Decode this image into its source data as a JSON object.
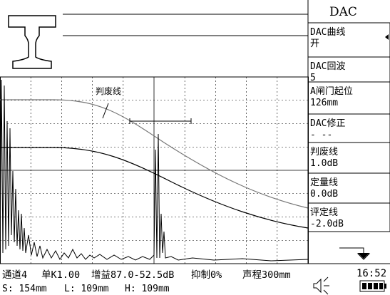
{
  "menu": {
    "title": "DAC",
    "items": [
      {
        "label": "DAC曲线",
        "value": "开"
      },
      {
        "label": "DAC回波",
        "value": "5"
      },
      {
        "label": "A闸门起位",
        "value": "126mm"
      },
      {
        "label": "DAC修正",
        "value": "- --"
      },
      {
        "label": "判废线",
        "value": "1.0dB"
      },
      {
        "label": "定量线",
        "value": "0.0dB"
      },
      {
        "label": "评定线",
        "value": "-2.0dB"
      }
    ]
  },
  "chart": {
    "annotation": "判废线"
  },
  "status": {
    "line1": [
      "通道4",
      "单K1.00",
      "增益87.0-52.5dB",
      "抑制0%",
      "声程300mm"
    ],
    "line2": [
      "S: 154mm",
      "L: 109mm",
      "H: 109mm"
    ],
    "time": "16:52"
  }
}
